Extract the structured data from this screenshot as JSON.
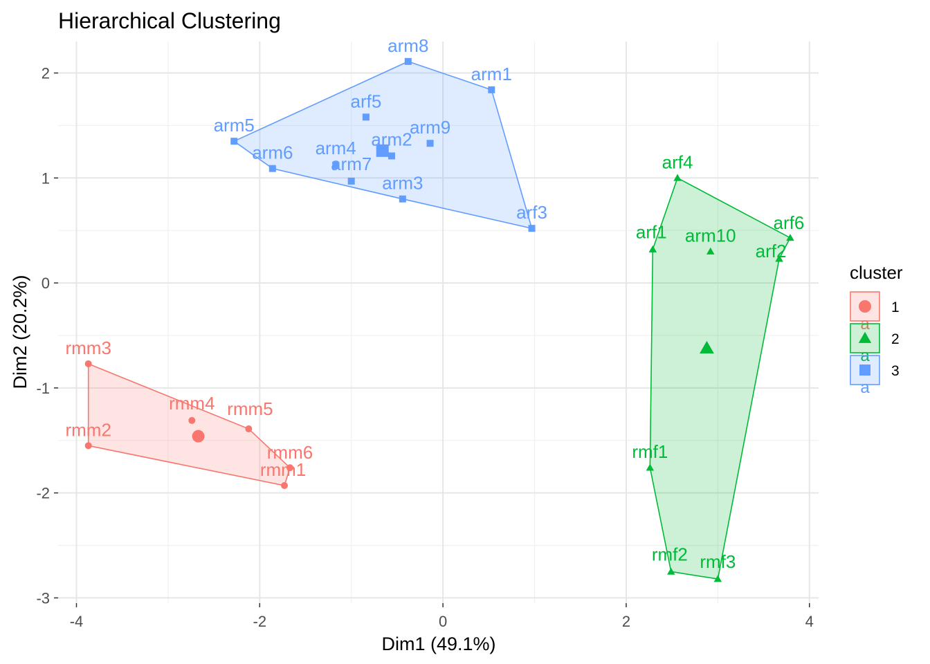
{
  "chart_data": {
    "type": "scatter",
    "title": "Hierarchical Clustering",
    "xlabel": "Dim1 (49.1%)",
    "ylabel": "Dim2 (20.2%)",
    "xlim": [
      -4.2,
      4.1
    ],
    "ylim": [
      -3.05,
      2.3
    ],
    "x_ticks": [
      -4,
      -2,
      0,
      2,
      4
    ],
    "y_ticks": [
      -3,
      -2,
      -1,
      0,
      1,
      2
    ],
    "grid": true,
    "legend": {
      "title": "cluster",
      "position": "right",
      "entries": [
        {
          "label": "1",
          "cluster": "1"
        },
        {
          "label": "2",
          "cluster": "2"
        },
        {
          "label": "3",
          "cluster": "3"
        }
      ],
      "key_letter": "a"
    },
    "clusters": [
      {
        "id": "1",
        "color": "#F8766D",
        "shape": "circle",
        "centroid": [
          -2.67,
          -1.46
        ],
        "hull": [
          "rmm3",
          "rmm5",
          "rmm6",
          "rmm1",
          "rmm2"
        ],
        "points": [
          {
            "label": "rmm3",
            "x": -3.87,
            "y": -0.77
          },
          {
            "label": "rmm2",
            "x": -3.87,
            "y": -1.55
          },
          {
            "label": "rmm4",
            "x": -2.74,
            "y": -1.31
          },
          {
            "label": "rmm5",
            "x": -2.12,
            "y": -1.39
          },
          {
            "label": "rmm6",
            "x": -1.67,
            "y": -1.76
          },
          {
            "label": "rmm1",
            "x": -1.73,
            "y": -1.93
          }
        ]
      },
      {
        "id": "2",
        "color": "#00BA38",
        "shape": "triangle",
        "centroid": [
          2.88,
          -0.62
        ],
        "hull": [
          "arf4",
          "arf6",
          "arf2",
          "rmf3",
          "rmf2",
          "rmf1",
          "arf1"
        ],
        "points": [
          {
            "label": "arf4",
            "x": 2.56,
            "y": 1.0
          },
          {
            "label": "arf1",
            "x": 2.29,
            "y": 0.32
          },
          {
            "label": "arm10",
            "x": 2.92,
            "y": 0.3
          },
          {
            "label": "arf6",
            "x": 3.79,
            "y": 0.43
          },
          {
            "label": "arf2",
            "x": 3.67,
            "y": 0.23
          },
          {
            "label": "rmf1",
            "x": 2.26,
            "y": -1.76
          },
          {
            "label": "rmf2",
            "x": 2.49,
            "y": -2.75
          },
          {
            "label": "rmf3",
            "x": 3.0,
            "y": -2.82
          }
        ]
      },
      {
        "id": "3",
        "color": "#619CFF",
        "shape": "square",
        "centroid": [
          -0.66,
          1.26
        ],
        "hull": [
          "arm5",
          "arm8",
          "arm1",
          "arf3",
          "arm3",
          "arm6"
        ],
        "points": [
          {
            "label": "arm8",
            "x": -0.38,
            "y": 2.11
          },
          {
            "label": "arm1",
            "x": 0.53,
            "y": 1.84
          },
          {
            "label": "arf5",
            "x": -0.84,
            "y": 1.58
          },
          {
            "label": "arm5",
            "x": -2.28,
            "y": 1.35
          },
          {
            "label": "arm9",
            "x": -0.14,
            "y": 1.33
          },
          {
            "label": "arm2",
            "x": -0.56,
            "y": 1.21
          },
          {
            "label": "arm6",
            "x": -1.86,
            "y": 1.09
          },
          {
            "label": "arm4",
            "x": -1.17,
            "y": 1.12
          },
          {
            "label": "arm7",
            "x": -1.0,
            "y": 0.97
          },
          {
            "label": "arm3",
            "x": -0.44,
            "y": 0.8
          },
          {
            "label": "arf3",
            "x": 0.97,
            "y": 0.52
          }
        ]
      }
    ]
  }
}
